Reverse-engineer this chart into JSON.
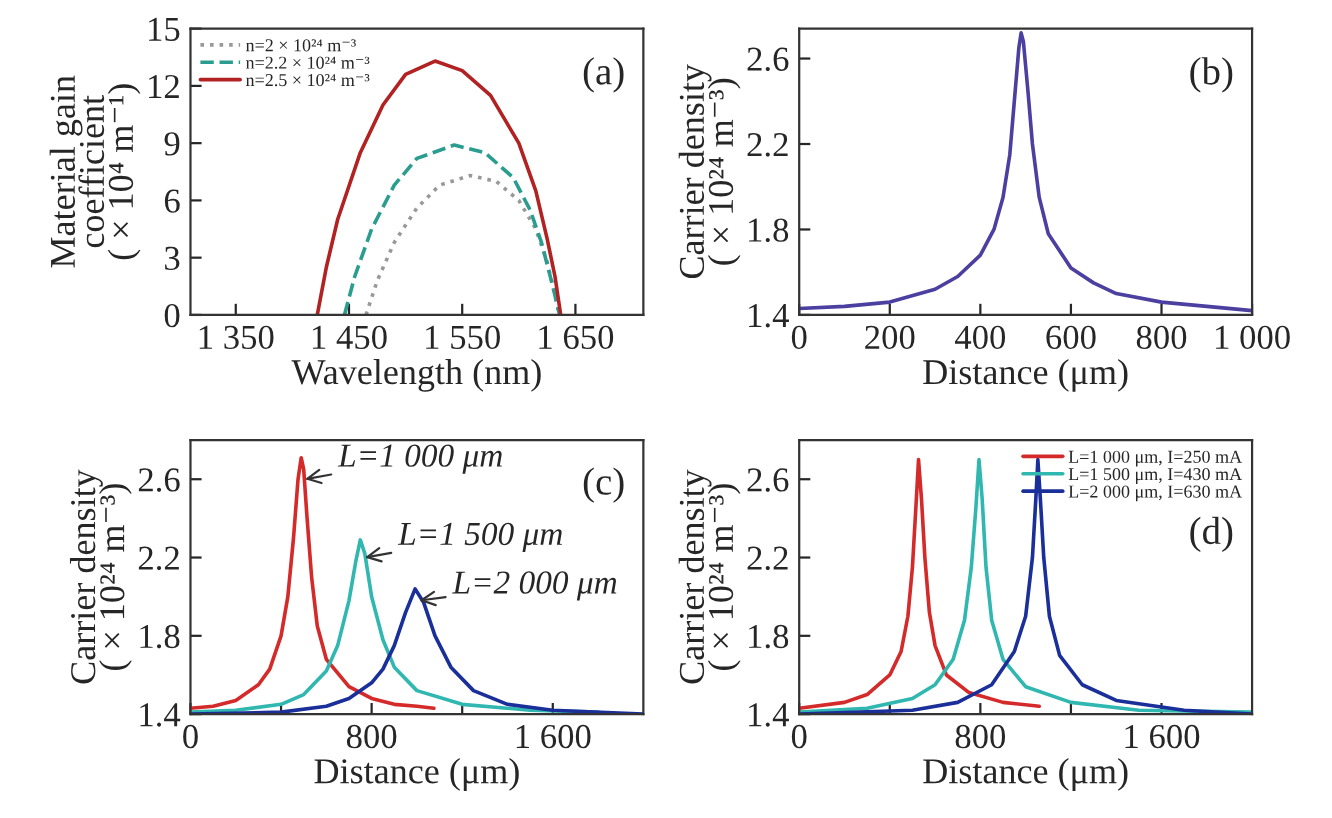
{
  "chart_data": [
    {
      "type": "line",
      "xlabel": "Wavelength (nm)",
      "ylabel": "Material gain\ncoefficient\n( × 10⁴ m⁻¹)",
      "annotations": [
        "(a)"
      ],
      "xlim": [
        1310,
        1710
      ],
      "ylim": [
        0,
        15
      ],
      "xticks": [
        {
          "value": 1350,
          "label": "1 350"
        },
        {
          "value": 1450,
          "label": "1 450"
        },
        {
          "value": 1550,
          "label": "1 550"
        },
        {
          "value": 1650,
          "label": "1 650"
        }
      ],
      "yticks": [
        0,
        3,
        6,
        9,
        12,
        15
      ],
      "legend": "top left",
      "grid": false,
      "series": [
        {
          "name": "n=2 × 10²⁴ m⁻³",
          "color": "#999999",
          "line_style": "dotted",
          "x": [
            1465,
            1475,
            1490,
            1510,
            1530,
            1557,
            1580,
            1600,
            1615,
            1625,
            1632,
            1636
          ],
          "values": [
            0,
            1.8,
            3.8,
            5.6,
            6.8,
            7.3,
            7.0,
            6.0,
            4.5,
            2.8,
            1.0,
            0
          ]
        },
        {
          "name": "n=2.2 × 10²⁴ m⁻³",
          "color": "#2a9d8f",
          "line_style": "dashed",
          "x": [
            1446,
            1455,
            1470,
            1490,
            1510,
            1543,
            1570,
            1595,
            1610,
            1620,
            1630,
            1636
          ],
          "values": [
            0,
            2,
            4.5,
            6.8,
            8.2,
            8.9,
            8.5,
            7.2,
            5.5,
            3.8,
            1.5,
            0
          ]
        },
        {
          "name": "n=2.5 × 10²⁴ m⁻³",
          "color": "#b22222",
          "line_style": "solid",
          "x": [
            1422,
            1430,
            1440,
            1460,
            1480,
            1500,
            1526,
            1550,
            1575,
            1600,
            1615,
            1625,
            1632,
            1637
          ],
          "values": [
            0,
            2.5,
            5,
            8.5,
            11,
            12.6,
            13.3,
            12.8,
            11.5,
            9.0,
            6.5,
            4,
            2,
            0
          ]
        }
      ]
    },
    {
      "type": "line",
      "xlabel": "Distance (μm)",
      "ylabel": "Carrier density\n( × 10²⁴ m⁻³)",
      "annotations": [
        "(b)"
      ],
      "xlim": [
        0,
        1000
      ],
      "ylim": [
        1.4,
        2.74
      ],
      "xticks": [
        0,
        200,
        400,
        600,
        800,
        {
          "value": 1000,
          "label": "1 000"
        }
      ],
      "yticks": [
        1.4,
        1.8,
        2.2,
        2.6
      ],
      "grid": false,
      "series": [
        {
          "color": "#4b3fa0",
          "x": [
            0,
            100,
            200,
            300,
            350,
            400,
            430,
            450,
            465,
            475,
            485,
            490,
            495,
            505,
            515,
            530,
            550,
            600,
            650,
            700,
            800,
            900,
            1000
          ],
          "values": [
            1.43,
            1.44,
            1.46,
            1.52,
            1.58,
            1.68,
            1.8,
            1.95,
            2.15,
            2.4,
            2.65,
            2.72,
            2.68,
            2.45,
            2.2,
            1.95,
            1.78,
            1.62,
            1.55,
            1.5,
            1.46,
            1.44,
            1.42
          ]
        }
      ]
    },
    {
      "type": "line",
      "xlabel": "Distance (μm)",
      "ylabel": "Carrier density\n( × 10²⁴ m⁻³)",
      "xlim": [
        0,
        2000
      ],
      "ylim": [
        1.4,
        2.8
      ],
      "xticks": [
        0,
        {
          "value": 400,
          "label": null
        },
        800,
        {
          "value": 1200,
          "label": null
        },
        {
          "value": 1600,
          "label": "1 600"
        }
      ],
      "yticks": [
        1.4,
        1.8,
        2.2,
        2.6
      ],
      "grid": false,
      "annotations": [
        {
          "text": "L=1 000 μm",
          "x": 505,
          "y": 2.6
        },
        {
          "text": "L=1 500 μm",
          "x": 770,
          "y": 2.2
        },
        {
          "text": "L=2 000 μm",
          "x": 1010,
          "y": 1.98
        },
        "(c)"
      ],
      "series": [
        {
          "color": "#d42a2a",
          "x": [
            0,
            100,
            200,
            300,
            350,
            400,
            430,
            455,
            475,
            489,
            500,
            515,
            535,
            560,
            600,
            700,
            800,
            900,
            1000,
            1075
          ],
          "values": [
            1.43,
            1.44,
            1.47,
            1.55,
            1.63,
            1.8,
            2.0,
            2.3,
            2.6,
            2.71,
            2.65,
            2.4,
            2.1,
            1.85,
            1.68,
            1.54,
            1.48,
            1.45,
            1.44,
            1.43
          ]
        },
        {
          "color": "#30b8b0",
          "x": [
            0,
            200,
            400,
            500,
            600,
            650,
            700,
            730,
            750,
            770,
            800,
            850,
            900,
            1000,
            1200,
            1500,
            1800
          ],
          "values": [
            1.41,
            1.42,
            1.45,
            1.5,
            1.62,
            1.75,
            1.98,
            2.18,
            2.29,
            2.22,
            2.0,
            1.78,
            1.64,
            1.52,
            1.45,
            1.42,
            1.41
          ]
        },
        {
          "color": "#1a2f9a",
          "x": [
            0,
            400,
            600,
            700,
            800,
            850,
            900,
            950,
            992,
            1030,
            1080,
            1150,
            1250,
            1400,
            1600,
            2000
          ],
          "values": [
            1.4,
            1.41,
            1.44,
            1.48,
            1.56,
            1.63,
            1.75,
            1.92,
            2.04,
            1.97,
            1.8,
            1.64,
            1.52,
            1.45,
            1.42,
            1.4
          ]
        }
      ]
    },
    {
      "type": "line",
      "xlabel": "Distance (μm)",
      "ylabel": "Carrier density\n( × 10²⁴ m⁻³)",
      "annotations": [
        "(d)"
      ],
      "xlim": [
        0,
        2000
      ],
      "ylim": [
        1.4,
        2.8
      ],
      "xticks": [
        0,
        {
          "value": 400,
          "label": null
        },
        800,
        {
          "value": 1200,
          "label": null
        },
        {
          "value": 1600,
          "label": "1 600"
        }
      ],
      "yticks": [
        1.4,
        1.8,
        2.2,
        2.6
      ],
      "legend": "top right",
      "grid": false,
      "series": [
        {
          "name": "L=1 000 μm, I=250 mA",
          "color": "#d42a2a",
          "x": [
            0,
            200,
            300,
            400,
            450,
            480,
            500,
            515,
            527,
            540,
            555,
            575,
            600,
            650,
            750,
            900,
            1060
          ],
          "values": [
            1.43,
            1.46,
            1.5,
            1.6,
            1.72,
            1.9,
            2.15,
            2.45,
            2.7,
            2.5,
            2.2,
            1.92,
            1.75,
            1.6,
            1.51,
            1.46,
            1.44
          ]
        },
        {
          "name": "L=1 500 μm, I=430 mA",
          "color": "#30b8b0",
          "x": [
            0,
            300,
            500,
            600,
            680,
            730,
            760,
            780,
            794,
            808,
            825,
            850,
            900,
            1000,
            1200,
            1500,
            2000
          ],
          "values": [
            1.41,
            1.43,
            1.48,
            1.55,
            1.68,
            1.88,
            2.15,
            2.45,
            2.7,
            2.5,
            2.15,
            1.88,
            1.68,
            1.54,
            1.46,
            1.42,
            1.41
          ]
        },
        {
          "name": "L=2 000 μm, I=630 mA",
          "color": "#1a2f9a",
          "x": [
            0,
            500,
            700,
            850,
            950,
            1000,
            1030,
            1045,
            1054,
            1065,
            1080,
            1105,
            1150,
            1250,
            1400,
            1700,
            2000
          ],
          "values": [
            1.4,
            1.42,
            1.46,
            1.55,
            1.72,
            1.9,
            2.2,
            2.5,
            2.7,
            2.5,
            2.2,
            1.9,
            1.7,
            1.55,
            1.47,
            1.42,
            1.4
          ]
        }
      ]
    }
  ]
}
